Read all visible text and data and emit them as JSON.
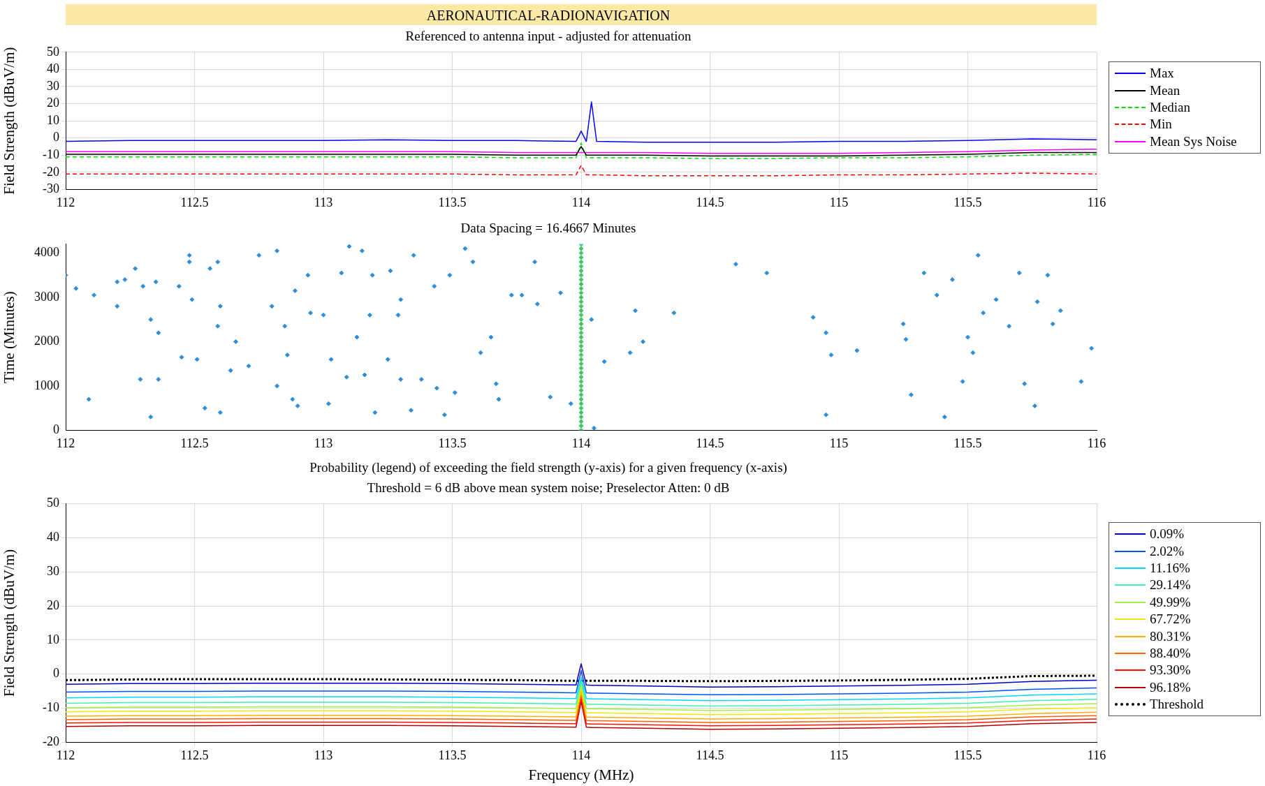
{
  "chart_data": [
    {
      "type": "line",
      "title": "AERONAUTICAL-RADIONAVIGATION",
      "subtitle": "Referenced to antenna input - adjusted for attenuation",
      "ylabel": "Field Strength (dBuV/m)",
      "x": [
        112,
        112.25,
        112.5,
        112.75,
        113,
        113.25,
        113.5,
        113.75,
        113.98,
        114,
        114.02,
        114.04,
        114.06,
        114.25,
        114.5,
        114.75,
        115,
        115.25,
        115.5,
        115.75,
        116
      ],
      "series": [
        {
          "name": "Max",
          "color": "#0000ff",
          "values": [
            -2,
            -1.5,
            -1.5,
            -1.5,
            -1.5,
            -1,
            -1.5,
            -1.5,
            -2,
            4,
            -2,
            21,
            -2,
            -2.5,
            -2.5,
            -2.5,
            -2,
            -2,
            -1.5,
            -0.5,
            -1
          ]
        },
        {
          "name": "Mean",
          "color": "#000000",
          "values": [
            -9.5,
            -9.5,
            -9.5,
            -9.5,
            -9.5,
            -9.5,
            -9.5,
            -10,
            -10,
            -5,
            -10,
            -10,
            -10,
            -10,
            -10.5,
            -10.5,
            -10.5,
            -10,
            -9.5,
            -8.5,
            -8.5
          ]
        },
        {
          "name": "Median",
          "color": "#00dd00",
          "line_style": "dashed",
          "values": [
            -11,
            -11,
            -11,
            -11,
            -11,
            -11,
            -11,
            -11.5,
            -11.5,
            -3,
            -11.5,
            -11.5,
            -11.5,
            -11.5,
            -12,
            -12,
            -11.5,
            -11.5,
            -11,
            -10,
            -9.5
          ]
        },
        {
          "name": "Min",
          "color": "#ff0000",
          "line_style": "dashed",
          "values": [
            -21,
            -21,
            -21,
            -21,
            -21,
            -21,
            -21,
            -21.5,
            -21.5,
            -16,
            -21.5,
            -21.5,
            -21.5,
            -22,
            -22,
            -22,
            -21.5,
            -21.5,
            -21,
            -20.5,
            -21
          ]
        },
        {
          "name": "Mean Sys Noise",
          "color": "#ff00ff",
          "values": [
            -8,
            -8,
            -8,
            -8,
            -8,
            -8,
            -8,
            -8.5,
            -8.5,
            -8.5,
            -8.5,
            -8.5,
            -8.5,
            -8.5,
            -9,
            -9,
            -9,
            -8.5,
            -8,
            -7,
            -6.5
          ]
        }
      ],
      "xlim": [
        112,
        116
      ],
      "xticks": [
        112,
        112.5,
        113,
        113.5,
        114,
        114.5,
        115,
        115.5,
        116
      ],
      "ylim": [
        -30,
        50
      ],
      "yticks": [
        -30,
        -20,
        -10,
        0,
        10,
        20,
        30,
        40,
        50
      ],
      "grid": true,
      "legend": "right",
      "marker": "none"
    },
    {
      "type": "scatter",
      "title": "Data Spacing = 16.4667 Minutes",
      "ylabel": "Time (Minutes)",
      "xlim": [
        112,
        116
      ],
      "xticks": [
        112,
        112.5,
        113,
        113.5,
        114,
        114.5,
        115,
        115.5,
        116
      ],
      "ylim": [
        0,
        4200
      ],
      "yticks": [
        0,
        1000,
        2000,
        3000,
        4000
      ],
      "marker": "diamond",
      "series": [
        {
          "color": "#2e8fd8",
          "x": [
            112.0,
            112.04,
            112.09,
            112.11,
            112.2,
            112.2,
            112.23,
            112.27,
            112.29,
            112.3,
            112.33,
            112.33,
            112.35,
            112.36,
            112.36,
            112.44,
            112.45,
            112.48,
            112.48,
            112.49,
            112.51,
            112.54,
            112.56,
            112.59,
            112.6,
            112.59,
            112.6,
            112.66,
            112.64,
            112.71,
            112.75,
            112.8,
            112.82,
            112.82,
            112.85,
            112.86,
            112.89,
            112.88,
            112.9,
            112.94,
            112.95,
            113.0,
            113.02,
            113.03,
            113.07,
            113.09,
            113.1,
            113.13,
            113.15,
            113.16,
            113.18,
            113.19,
            113.2,
            113.25,
            113.26,
            113.29,
            113.3,
            113.3,
            113.34,
            113.35,
            113.38,
            113.43,
            113.44,
            113.47,
            113.49,
            113.51,
            113.55,
            113.58,
            113.61,
            113.65,
            113.67,
            113.68,
            113.73,
            113.77,
            113.83,
            113.82,
            113.88,
            113.92,
            113.96,
            114.04,
            114.05,
            114.09,
            114.19,
            114.21,
            114.24,
            114.36,
            114.6,
            114.72,
            114.9,
            114.95,
            114.95,
            114.97,
            115.07,
            115.25,
            115.26,
            115.28,
            115.33,
            115.38,
            115.41,
            115.44,
            115.48,
            115.5,
            115.52,
            115.54,
            115.56,
            115.61,
            115.66,
            115.7,
            115.72,
            115.76,
            115.77,
            115.81,
            115.83,
            115.86,
            115.94,
            115.98
          ],
          "values": [
            3500,
            3200,
            700,
            3050,
            2800,
            3350,
            3400,
            3650,
            1150,
            3250,
            300,
            2500,
            3350,
            1150,
            2200,
            3250,
            1650,
            3950,
            3800,
            2950,
            1600,
            500,
            3650,
            3800,
            2800,
            2350,
            400,
            2000,
            1350,
            1450,
            3950,
            2800,
            4050,
            1000,
            2350,
            1700,
            3150,
            700,
            550,
            3500,
            2650,
            2600,
            600,
            1600,
            3550,
            1200,
            4150,
            2100,
            4050,
            1250,
            2600,
            3500,
            400,
            1600,
            3600,
            2600,
            1150,
            2950,
            450,
            3950,
            1150,
            3250,
            950,
            350,
            3500,
            850,
            4100,
            3800,
            1750,
            2100,
            1050,
            700,
            3050,
            3050,
            2850,
            3800,
            750,
            3100,
            600,
            2500,
            50,
            1550,
            1750,
            2700,
            2000,
            2650,
            3750,
            3550,
            2550,
            2200,
            350,
            1700,
            1800,
            2400,
            2050,
            800,
            3550,
            3050,
            300,
            3400,
            1100,
            2100,
            1750,
            3950,
            2650,
            2950,
            2350,
            3550,
            1050,
            550,
            2900,
            3500,
            2400,
            2700,
            1100,
            1850
          ]
        },
        {
          "color": "#3cc860",
          "x": [
            114,
            114,
            114,
            114,
            114,
            114,
            114,
            114,
            114,
            114,
            114,
            114,
            114,
            114,
            114,
            114,
            114,
            114,
            114,
            114,
            114,
            114,
            114,
            114,
            114,
            114,
            114,
            114,
            114,
            114,
            114,
            114,
            114,
            114,
            114,
            114,
            114,
            114,
            114,
            114,
            114,
            114,
            114
          ],
          "values": [
            0,
            100,
            200,
            300,
            400,
            500,
            600,
            700,
            800,
            900,
            1000,
            1100,
            1200,
            1300,
            1400,
            1500,
            1600,
            1700,
            1800,
            1900,
            2000,
            2100,
            2200,
            2300,
            2400,
            2500,
            2600,
            2700,
            2800,
            2900,
            3000,
            3100,
            3200,
            3300,
            3400,
            3500,
            3600,
            3700,
            3800,
            3900,
            4000,
            4100,
            4200
          ]
        }
      ]
    },
    {
      "type": "line",
      "title": "Probability (legend) of exceeding the field strength (y-axis) for a given frequency (x-axis)",
      "subtitle": "Threshold = 6 dB above mean system noise; Preselector Atten: 0 dB",
      "xlabel": "Frequency (MHz)",
      "ylabel": "Field Strength (dBuV/m)",
      "x": [
        112,
        112.25,
        112.5,
        112.75,
        113,
        113.25,
        113.5,
        113.75,
        113.98,
        114,
        114.02,
        114.04,
        114.06,
        114.25,
        114.5,
        114.75,
        115,
        115.25,
        115.5,
        115.75,
        116
      ],
      "series": [
        {
          "name": "0.09%",
          "color": "#0000c8",
          "values": [
            -3,
            -2.8,
            -2.8,
            -2.7,
            -2.7,
            -2.7,
            -2.8,
            -3,
            -3.2,
            3,
            -3.2,
            -3.3,
            -3.3,
            -3.5,
            -3.8,
            -3.7,
            -3.5,
            -3.3,
            -3,
            -2.2,
            -1.8
          ]
        },
        {
          "name": "2.02%",
          "color": "#0050ff",
          "values": [
            -5.3,
            -5.1,
            -5.1,
            -5,
            -5,
            -5,
            -5.1,
            -5.3,
            -5.5,
            1,
            -5.5,
            -5.6,
            -5.6,
            -5.8,
            -6.1,
            -6,
            -5.8,
            -5.6,
            -5.3,
            -4.5,
            -4.1
          ]
        },
        {
          "name": "11.16%",
          "color": "#00d8ff",
          "values": [
            -7,
            -6.8,
            -6.8,
            -6.7,
            -6.7,
            -6.7,
            -6.8,
            -7,
            -7.2,
            -1,
            -7.2,
            -7.3,
            -7.3,
            -7.5,
            -7.8,
            -7.7,
            -7.5,
            -7.3,
            -7,
            -6.2,
            -5.8
          ]
        },
        {
          "name": "29.14%",
          "color": "#40f0b0",
          "values": [
            -8.6,
            -8.4,
            -8.4,
            -8.3,
            -8.3,
            -8.3,
            -8.4,
            -8.6,
            -8.8,
            -2,
            -8.8,
            -8.9,
            -8.9,
            -9.1,
            -9.4,
            -9.3,
            -9.1,
            -8.9,
            -8.6,
            -7.8,
            -7.4
          ]
        },
        {
          "name": "49.99%",
          "color": "#a0f040",
          "values": [
            -9.9,
            -9.7,
            -9.7,
            -9.6,
            -9.6,
            -9.6,
            -9.7,
            -9.9,
            -10.1,
            -3,
            -10.1,
            -10.2,
            -10.2,
            -10.4,
            -10.7,
            -10.6,
            -10.4,
            -10.2,
            -9.9,
            -9.1,
            -8.7
          ]
        },
        {
          "name": "67.72%",
          "color": "#f0e800",
          "values": [
            -11.1,
            -10.9,
            -10.9,
            -10.8,
            -10.8,
            -10.8,
            -10.9,
            -11.1,
            -11.3,
            -4,
            -11.3,
            -11.4,
            -11.4,
            -11.6,
            -11.9,
            -11.8,
            -11.6,
            -11.4,
            -11.1,
            -10.3,
            -9.9
          ]
        },
        {
          "name": "80.31%",
          "color": "#ffb000",
          "values": [
            -12.4,
            -12.2,
            -12.2,
            -12.1,
            -12.1,
            -12.1,
            -12.2,
            -12.4,
            -12.6,
            -5,
            -12.6,
            -12.7,
            -12.7,
            -12.9,
            -13.2,
            -13.1,
            -12.9,
            -12.7,
            -12.4,
            -11.6,
            -11.2
          ]
        },
        {
          "name": "88.40%",
          "color": "#ff6000",
          "values": [
            -13.4,
            -13.2,
            -13.2,
            -13.1,
            -13.1,
            -13.1,
            -13.2,
            -13.4,
            -13.6,
            -6,
            -13.6,
            -13.7,
            -13.7,
            -13.9,
            -14.2,
            -14.1,
            -13.9,
            -13.7,
            -13.4,
            -12.6,
            -12.2
          ]
        },
        {
          "name": "93.30%",
          "color": "#ff1000",
          "values": [
            -14.4,
            -14.2,
            -14.2,
            -14.1,
            -14.1,
            -14.1,
            -14.2,
            -14.4,
            -14.6,
            -7,
            -14.6,
            -14.7,
            -14.7,
            -14.9,
            -15.2,
            -15.1,
            -14.9,
            -14.7,
            -14.4,
            -13.6,
            -13.2
          ]
        },
        {
          "name": "96.18%",
          "color": "#b00000",
          "values": [
            -15.4,
            -15.2,
            -15.2,
            -15.1,
            -15.1,
            -15.1,
            -15.2,
            -15.4,
            -15.6,
            -8,
            -15.6,
            -15.7,
            -15.7,
            -15.9,
            -16.2,
            -16.1,
            -15.9,
            -15.7,
            -15.4,
            -14.6,
            -14.2
          ]
        },
        {
          "name": "Threshold",
          "color": "#000000",
          "line_style": "dotted",
          "values": [
            -1.8,
            -1.6,
            -1.5,
            -1.5,
            -1.5,
            -1.6,
            -1.7,
            -1.8,
            -2,
            -2,
            -2,
            -2,
            -2,
            -2,
            -2.1,
            -2,
            -1.9,
            -1.7,
            -1.4,
            -0.6,
            -0.5
          ]
        }
      ],
      "xlim": [
        112,
        116
      ],
      "xticks": [
        112,
        112.5,
        113,
        113.5,
        114,
        114.5,
        115,
        115.5,
        116
      ],
      "ylim": [
        -20,
        50
      ],
      "yticks": [
        -20,
        -10,
        0,
        10,
        20,
        30,
        40,
        50
      ],
      "grid": true,
      "legend": "right",
      "marker": "none"
    }
  ]
}
